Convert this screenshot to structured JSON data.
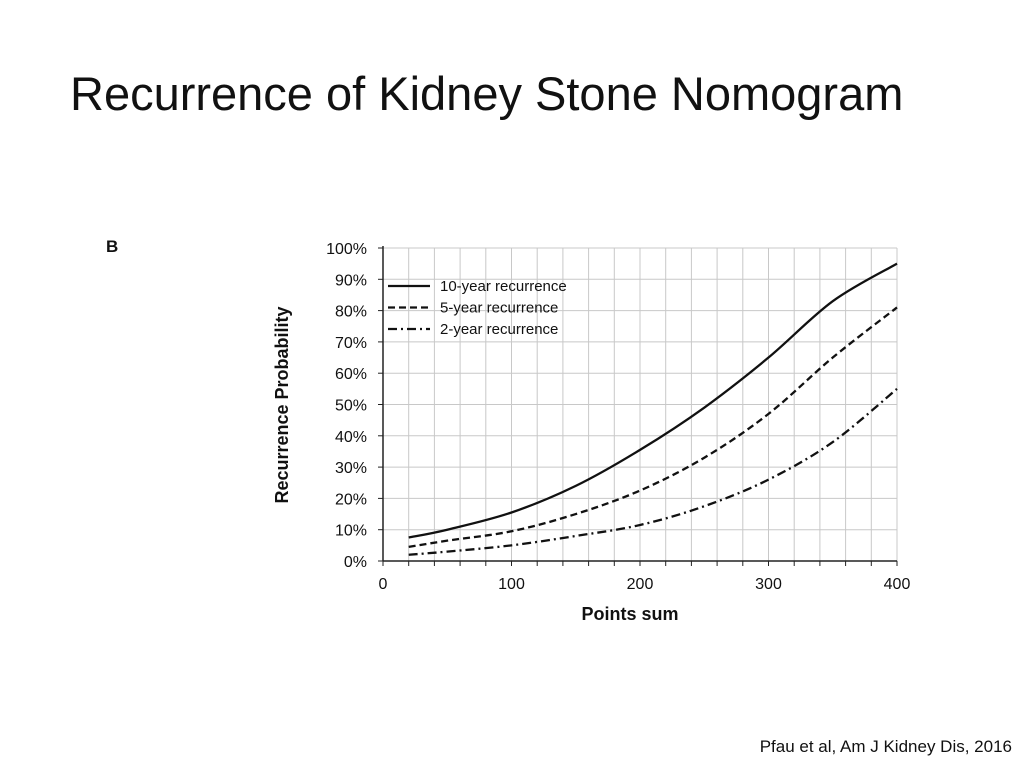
{
  "slide": {
    "title": "Recurrence of Kidney Stone Nomogram",
    "citation": "Pfau et al, Am J Kidney Dis, 2016",
    "panel_label": "B"
  },
  "chart_data": {
    "type": "line",
    "title": "",
    "xlabel": "Points sum",
    "ylabel": "Recurrence Probability",
    "xlim": [
      0,
      400
    ],
    "ylim": [
      0,
      100
    ],
    "x_ticks": [
      "0",
      "100",
      "200",
      "300",
      "400"
    ],
    "y_ticks": [
      "0%",
      "10%",
      "20%",
      "30%",
      "40%",
      "50%",
      "60%",
      "70%",
      "80%",
      "90%",
      "100%"
    ],
    "grid": true,
    "grid_x_step": 20,
    "legend_position": "top-left",
    "x": [
      20,
      50,
      100,
      150,
      200,
      250,
      300,
      350,
      400
    ],
    "series": [
      {
        "name": "10-year recurrence",
        "style": "solid",
        "values": [
          7.5,
          10,
          15.5,
          24,
          35.5,
          49,
          65,
          83,
          95
        ]
      },
      {
        "name": "5-year recurrence",
        "style": "dashed",
        "values": [
          4.5,
          6.5,
          9.5,
          15,
          22.5,
          33,
          47,
          65,
          81
        ]
      },
      {
        "name": "2-year recurrence",
        "style": "dash-dot",
        "values": [
          2,
          3,
          5,
          8,
          11.5,
          17.5,
          26,
          38,
          55
        ]
      }
    ],
    "colors": {
      "line": "#111111",
      "grid": "#c8c8c8"
    }
  }
}
